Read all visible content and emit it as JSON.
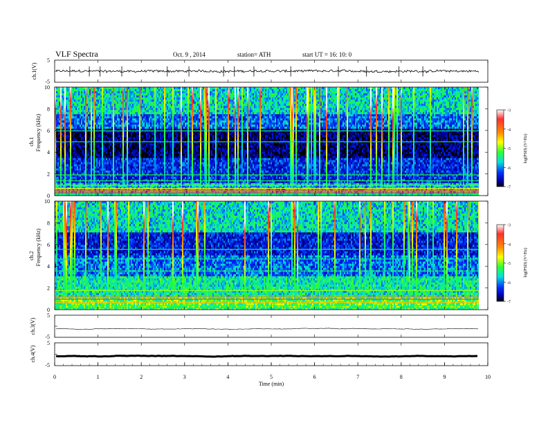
{
  "header": {
    "title": "VLF  Spectra",
    "date": "Oct. 9  , 2014",
    "station": "station= ATH",
    "start": "start  UT  =    16: 10: 0"
  },
  "chart_data": [
    {
      "type": "line",
      "panel": "ch1-waveform",
      "ylabel": "ch.1(V)",
      "yticks": [
        "5",
        "-5"
      ],
      "ylim": [
        -5,
        5
      ],
      "xlim": [
        0,
        10
      ],
      "series": [
        {
          "mean": 0,
          "noise": 0.5,
          "spikes": [
            0.35,
            0.8,
            1.05,
            1.55,
            2.6,
            3.1,
            3.9,
            4.15,
            4.6,
            5.45,
            6.55,
            7.2,
            7.95,
            8.5
          ]
        }
      ]
    },
    {
      "type": "heatmap",
      "panel": "ch1-spectrogram",
      "ylabel_top": "ch.1",
      "ylabel": "Frequency  (kHz)",
      "yticks": [
        "0",
        "2",
        "4",
        "6",
        "8",
        "10"
      ],
      "ylim": [
        0,
        10
      ],
      "xlim": [
        0,
        10
      ],
      "colorbar": {
        "label": "log(PSD) (V²/Hz)",
        "ticks": [
          "-3",
          "-4",
          "-5",
          "-6",
          "-7"
        ],
        "range": [
          -7,
          -3
        ]
      }
    },
    {
      "type": "heatmap",
      "panel": "ch2-spectrogram",
      "ylabel_top": "ch.2",
      "ylabel": "Frequency  (kHz)",
      "yticks": [
        "0",
        "2",
        "4",
        "6",
        "8",
        "10"
      ],
      "ylim": [
        0,
        10
      ],
      "xlim": [
        0,
        10
      ],
      "colorbar": {
        "label": "log(PSD) (V²/Hz)",
        "ticks": [
          "-3",
          "-4",
          "-5",
          "-6",
          "-7"
        ],
        "range": [
          -7,
          -3
        ]
      }
    },
    {
      "type": "line",
      "panel": "ch3-waveform",
      "ylabel": "ch.3(V)",
      "yticks": [
        "5",
        "-5"
      ],
      "ylim": [
        -5,
        5
      ],
      "xlim": [
        0,
        10
      ],
      "series": [
        {
          "mean": -1.2,
          "noise": 0.05
        }
      ]
    },
    {
      "type": "line",
      "panel": "ch4-waveform",
      "ylabel": "ch.4(V)",
      "yticks": [
        "5",
        "-5"
      ],
      "ylim": [
        -5,
        5
      ],
      "xlim": [
        0,
        10
      ],
      "series": [
        {
          "mean": -0.8,
          "noise": 0.05
        }
      ]
    }
  ],
  "x_axis": {
    "label": "Time  (min)",
    "ticks": [
      "0",
      "1",
      "2",
      "3",
      "4",
      "5",
      "6",
      "7",
      "8",
      "9",
      "10"
    ],
    "data_end": 9.8
  }
}
